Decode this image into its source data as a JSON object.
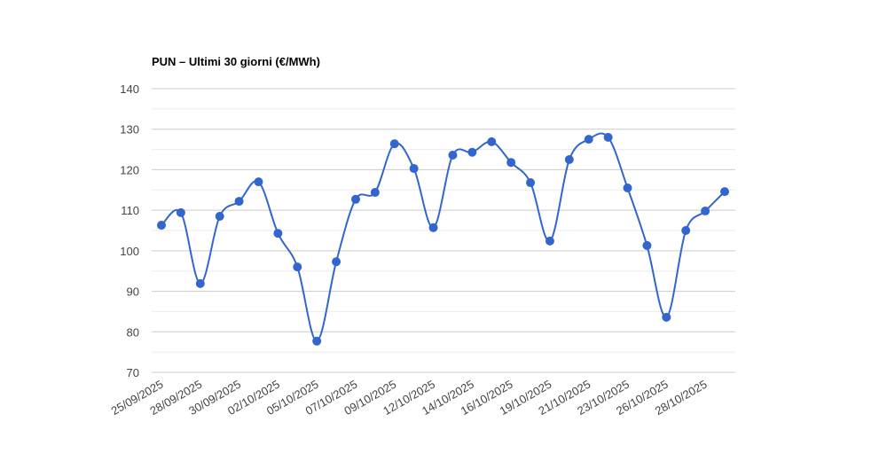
{
  "chart_data": {
    "type": "line",
    "title": "PUN – Ultimi 30 giorni (€/MWh)",
    "categories": [
      "25/09/2025",
      null,
      "28/09/2025",
      null,
      "30/09/2025",
      null,
      "02/10/2025",
      null,
      "05/10/2025",
      null,
      "07/10/2025",
      null,
      "09/10/2025",
      null,
      "12/10/2025",
      null,
      "14/10/2025",
      null,
      "16/10/2025",
      null,
      "19/10/2025",
      null,
      "21/10/2025",
      null,
      "23/10/2025",
      null,
      "26/10/2025",
      null,
      "28/10/2025",
      null
    ],
    "series": [
      {
        "color": "#3366cc",
        "values": [
          106.3,
          109.4,
          91.9,
          108.5,
          112.2,
          117.0,
          104.3,
          96.0,
          77.7,
          97.3,
          112.7,
          114.4,
          126.4,
          120.3,
          105.7,
          123.6,
          124.3,
          126.9,
          121.8,
          116.8,
          102.4,
          122.5,
          127.5,
          128.0,
          115.5,
          101.3,
          83.6,
          105.0,
          109.8,
          114.6
        ]
      }
    ],
    "ylim": [
      70,
      140
    ],
    "yticks": [
      70,
      80,
      90,
      100,
      110,
      120,
      130,
      140
    ],
    "grid": true,
    "minor_grid": true,
    "smooth": true
  }
}
